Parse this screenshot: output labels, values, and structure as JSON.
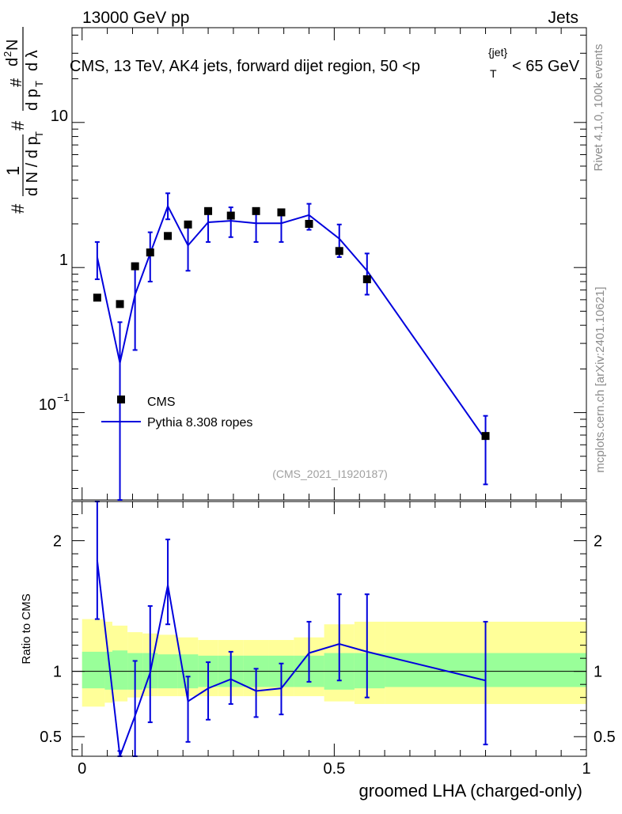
{
  "header": {
    "left": "13000 GeV pp",
    "right": "Jets"
  },
  "chart_data": [
    {
      "type": "scatter",
      "title": "CMS, 13 TeV, AK4 jets, forward dijet region, 50 <p_T^{jet}< 65 GeV",
      "title_parts": {
        "main": "CMS, 13 TeV, AK4 jets, forward dijet region, 50 <p",
        "sub": "T",
        "sup": "{jet}",
        "tail": "< 65 GeV"
      },
      "ylabel": "1/(dN/dpT) d2N/(dpT dλ)",
      "ylabel_parts": {
        "hash": "#",
        "one": "1",
        "dn": "d N / d p",
        "t": "T",
        "d2n": "d",
        "two": "2",
        "n": "N",
        "dpt": "d p",
        "dlam": "d λ"
      },
      "yscale": "log",
      "ylim": [
        0.025,
        45
      ],
      "xlim": [
        -0.02,
        1.0
      ],
      "ytick_labels": {
        "t001": "10",
        "t001e": "−1",
        "t1": "1",
        "t10": "10"
      },
      "reference": "(CMS_2021_I1920187)",
      "legend": {
        "position": "lower-left",
        "data_label": "CMS",
        "mc_label": "Pythia 8.308 ropes"
      },
      "series": [
        {
          "name": "CMS",
          "x": [
            0.03,
            0.075,
            0.105,
            0.135,
            0.17,
            0.21,
            0.25,
            0.295,
            0.345,
            0.395,
            0.45,
            0.51,
            0.565,
            0.8
          ],
          "y": [
            0.62,
            0.56,
            1.02,
            1.27,
            1.65,
            1.98,
            2.45,
            2.28,
            2.45,
            2.4,
            2.0,
            1.3,
            0.83,
            0.069
          ],
          "yerr_lo": [
            0.01,
            0.01,
            0.01,
            0.01,
            0.01,
            0.01,
            0.01,
            0.01,
            0.01,
            0.01,
            0.01,
            0.01,
            0.01,
            0.001
          ],
          "yerr_hi": [
            0.01,
            0.01,
            0.01,
            0.01,
            0.01,
            0.01,
            0.01,
            0.01,
            0.01,
            0.01,
            0.01,
            0.01,
            0.01,
            0.001
          ]
        },
        {
          "name": "Pythia 8.308 ropes",
          "x": [
            0.03,
            0.075,
            0.105,
            0.135,
            0.17,
            0.21,
            0.25,
            0.295,
            0.345,
            0.395,
            0.45,
            0.51,
            0.565,
            0.8
          ],
          "y": [
            1.18,
            0.22,
            0.65,
            1.25,
            2.65,
            1.42,
            2.05,
            2.1,
            2.02,
            2.02,
            2.3,
            1.58,
            0.95,
            0.065
          ],
          "yerr_lo": [
            0.35,
            0.2,
            0.38,
            0.45,
            0.5,
            0.47,
            0.55,
            0.48,
            0.52,
            0.52,
            0.48,
            0.4,
            0.3,
            0.033
          ],
          "yerr_hi": [
            0.32,
            0.2,
            0.42,
            0.5,
            0.6,
            0.5,
            0.5,
            0.5,
            0.45,
            0.45,
            0.45,
            0.4,
            0.3,
            0.03
          ]
        }
      ]
    },
    {
      "type": "scatter",
      "xlabel": "groomed LHA (charged-only)",
      "ylabel": "Ratio to CMS",
      "ylim": [
        0.35,
        2.3
      ],
      "xlim": [
        -0.02,
        1.0
      ],
      "yticks": [
        0.5,
        1,
        2
      ],
      "ytick_labels": [
        "0.5",
        "1",
        "2"
      ],
      "xticks": [
        0,
        0.5,
        1
      ],
      "xtick_labels": [
        "0",
        "0.5",
        "1"
      ],
      "bands": {
        "edges": [
          0,
          0.045,
          0.06,
          0.09,
          0.12,
          0.15,
          0.19,
          0.23,
          0.27,
          0.32,
          0.37,
          0.42,
          0.48,
          0.54,
          0.6,
          1.0
        ],
        "green_lo": [
          0.87,
          0.86,
          0.86,
          0.86,
          0.87,
          0.87,
          0.87,
          0.88,
          0.88,
          0.88,
          0.88,
          0.88,
          0.86,
          0.87,
          0.88
        ],
        "green_hi": [
          1.15,
          1.15,
          1.16,
          1.14,
          1.14,
          1.13,
          1.13,
          1.12,
          1.12,
          1.12,
          1.12,
          1.12,
          1.14,
          1.14,
          1.14
        ],
        "yellow_lo": [
          0.73,
          0.76,
          0.77,
          0.8,
          0.81,
          0.81,
          0.81,
          0.81,
          0.81,
          0.81,
          0.81,
          0.81,
          0.77,
          0.75,
          0.75
        ],
        "yellow_hi": [
          1.4,
          1.38,
          1.35,
          1.3,
          1.29,
          1.28,
          1.26,
          1.24,
          1.24,
          1.24,
          1.24,
          1.26,
          1.36,
          1.38,
          1.38
        ]
      },
      "series": [
        {
          "name": "Pythia 8.308 ropes / CMS",
          "x": [
            0.03,
            0.075,
            0.105,
            0.135,
            0.17,
            0.21,
            0.25,
            0.295,
            0.345,
            0.395,
            0.45,
            0.51,
            0.565,
            0.8
          ],
          "y": [
            1.85,
            0.33,
            0.66,
            0.99,
            1.66,
            0.77,
            0.87,
            0.94,
            0.85,
            0.87,
            1.14,
            1.21,
            1.15,
            0.93
          ],
          "yerr_lo": [
            0.45,
            0.1,
            0.33,
            0.38,
            0.3,
            0.31,
            0.24,
            0.19,
            0.2,
            0.2,
            0.22,
            0.28,
            0.35,
            0.49
          ],
          "yerr_hi": [
            0.52,
            0.06,
            0.42,
            0.51,
            0.35,
            0.19,
            0.2,
            0.21,
            0.17,
            0.19,
            0.24,
            0.38,
            0.44,
            0.45
          ]
        }
      ]
    }
  ],
  "side_labels": {
    "rivet": "Rivet 4.1.0,  100k events",
    "mcplots": "mcplots.cern.ch [arXiv:2401.10621]"
  }
}
